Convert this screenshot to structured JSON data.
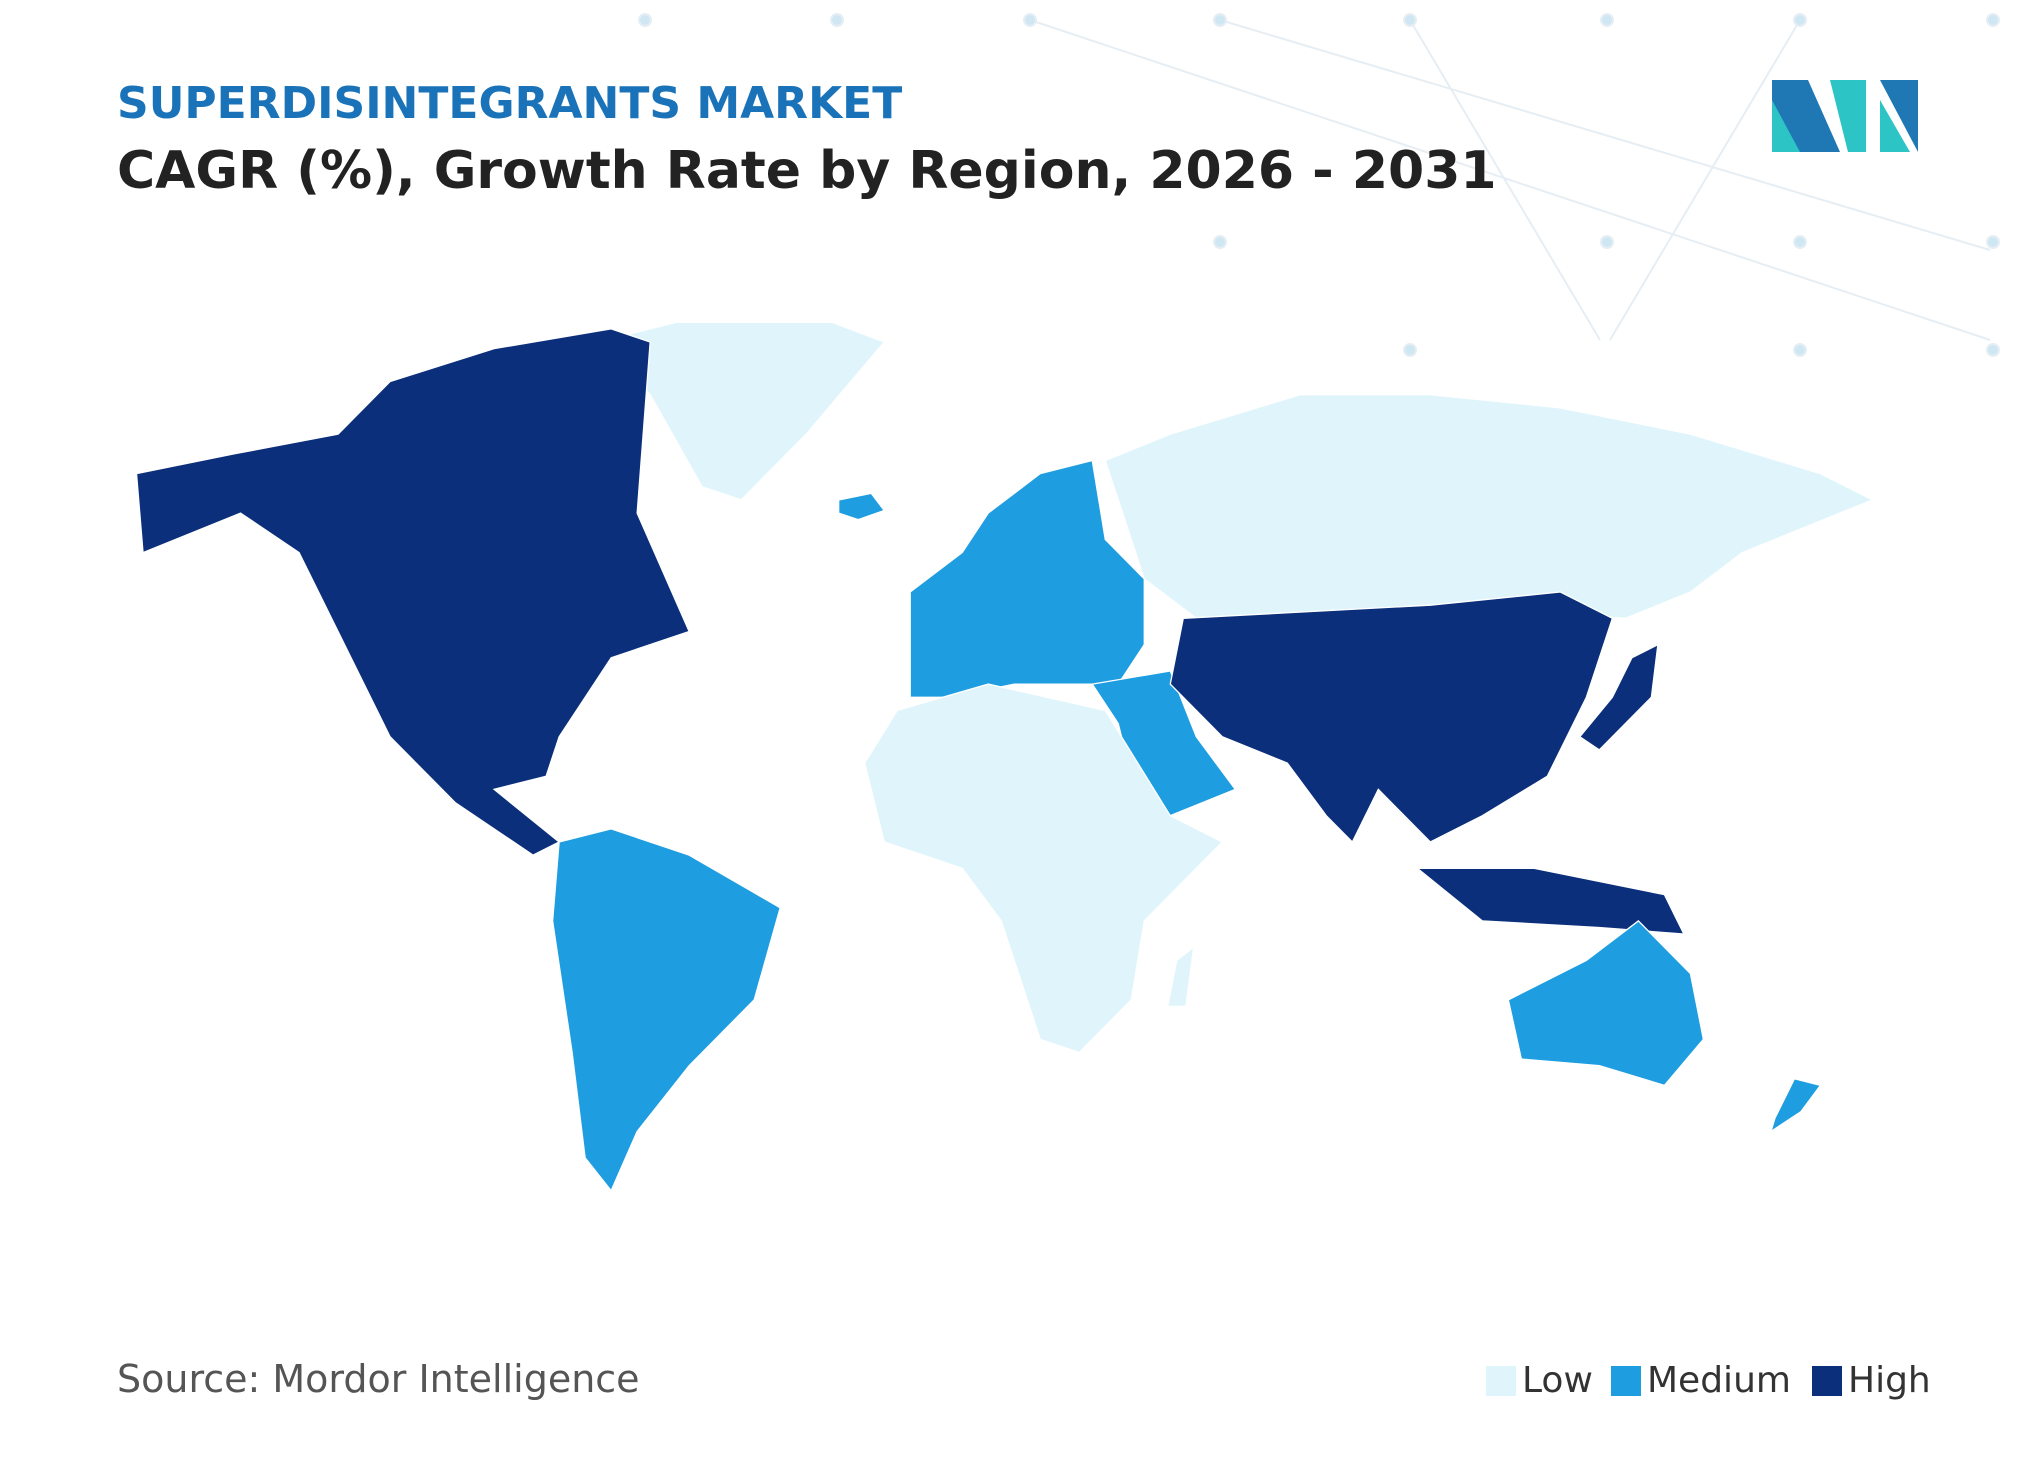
{
  "header": {
    "title": "SUPERDISINTEGRANTS MARKET",
    "subtitle": "CAGR (%), Growth Rate by Region, 2026 - 2031"
  },
  "legend": [
    {
      "label": "Low",
      "color": "#dff5fb"
    },
    {
      "label": "Medium",
      "color": "#1e9de0"
    },
    {
      "label": "High",
      "color": "#0b2f7a"
    }
  ],
  "source": "Source: Mordor Intelligence"
}
